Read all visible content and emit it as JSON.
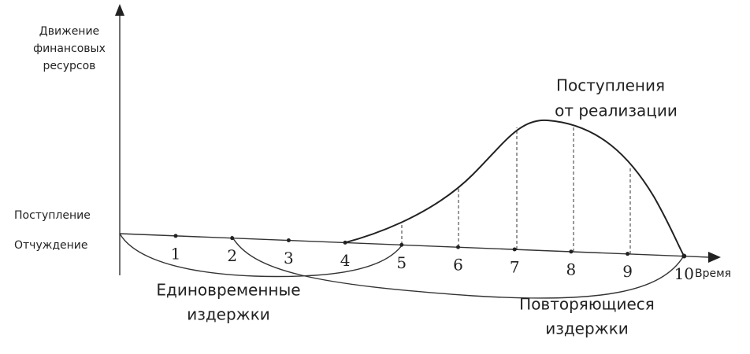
{
  "y_axis": {
    "label": [
      "Движение",
      "финансовых",
      "ресурсов"
    ]
  },
  "x_axis": {
    "label": "Время",
    "ticks": [
      1,
      2,
      3,
      4,
      5,
      6,
      7,
      8,
      9,
      10
    ]
  },
  "zones": {
    "above": "Поступление",
    "below": "Отчуждение"
  },
  "curves": {
    "revenue": [
      "Поступления",
      "от реализации"
    ],
    "one_time_costs": [
      "Единовременные",
      "издержки"
    ],
    "recurring_costs": [
      "Повторяющиеся",
      "издержки"
    ]
  }
}
